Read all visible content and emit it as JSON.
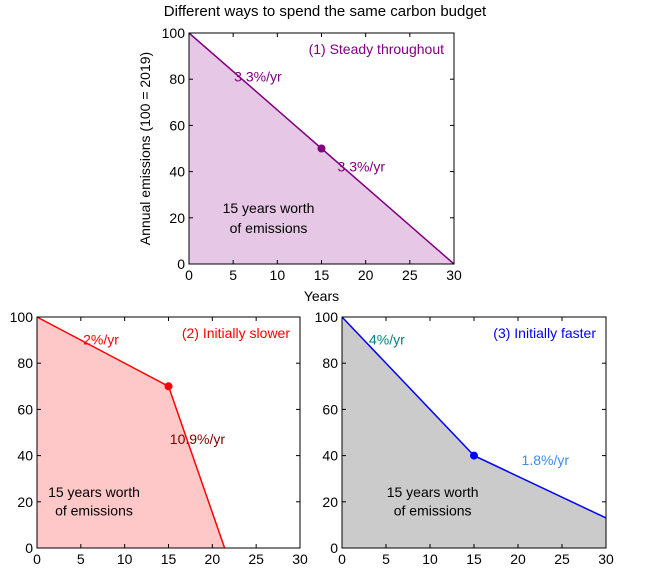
{
  "figure": {
    "title": "Different ways to spend the same carbon budget"
  },
  "chart_data": [
    {
      "type": "area",
      "title": "(1) Steady throughout",
      "title_color": "#800080",
      "xlabel": "Years",
      "ylabel": "Annual emissions (100 = 2019)",
      "xlim": [
        0,
        30
      ],
      "ylim": [
        0,
        100
      ],
      "xticks": [
        0,
        5,
        10,
        15,
        20,
        25,
        30
      ],
      "yticks": [
        0,
        20,
        40,
        60,
        80,
        100
      ],
      "grid": false,
      "line_color": "#800080",
      "fill_color": "#e6c8e6",
      "x": [
        0,
        15,
        30
      ],
      "y": [
        100,
        50,
        0
      ],
      "marker": {
        "x": 15,
        "y": 50
      },
      "annotations": [
        {
          "text": "3.3%/yr",
          "color": "#800080",
          "x": 7.8,
          "y": 79
        },
        {
          "text": "3.3%/yr",
          "color": "#800080",
          "x": 19.5,
          "y": 40
        },
        {
          "text": "15 years worth",
          "color": "#000000",
          "x": 9,
          "y": 22
        },
        {
          "text": "of emissions",
          "color": "#000000",
          "x": 9,
          "y": 13.5
        }
      ]
    },
    {
      "type": "area",
      "title": "(2) Initially slower",
      "title_color": "#ff0000",
      "xlabel": "",
      "ylabel": "",
      "xlim": [
        0,
        30
      ],
      "ylim": [
        0,
        100
      ],
      "xticks": [
        0,
        5,
        10,
        15,
        20,
        25,
        30
      ],
      "yticks": [
        0,
        20,
        40,
        60,
        80,
        100
      ],
      "grid": false,
      "line_color": "#ff0000",
      "fill_color": "#ffc8c8",
      "x": [
        0,
        15,
        21.4
      ],
      "y": [
        100,
        70,
        0
      ],
      "marker": {
        "x": 15,
        "y": 70
      },
      "annotations": [
        {
          "text": "2%/yr",
          "color": "#ff0000",
          "x": 7.3,
          "y": 88
        },
        {
          "text": "10.9%/yr",
          "color": "#800000",
          "x": 18.3,
          "y": 45
        },
        {
          "text": "15 years worth",
          "color": "#000000",
          "x": 6.5,
          "y": 22
        },
        {
          "text": "of emissions",
          "color": "#000000",
          "x": 6.5,
          "y": 14
        }
      ]
    },
    {
      "type": "area",
      "title": "(3) Initially faster",
      "title_color": "#0000ff",
      "xlabel": "",
      "ylabel": "",
      "xlim": [
        0,
        30
      ],
      "ylim": [
        0,
        100
      ],
      "xticks": [
        0,
        5,
        10,
        15,
        20,
        25,
        30
      ],
      "yticks": [
        0,
        20,
        40,
        60,
        80,
        100
      ],
      "grid": false,
      "line_color": "#0000ff",
      "fill_color": "#cbcbcb",
      "x": [
        0,
        15,
        30
      ],
      "y": [
        100,
        40,
        13
      ],
      "marker": {
        "x": 15,
        "y": 40
      },
      "annotations": [
        {
          "text": "4%/yr",
          "color": "#008080",
          "x": 5.1,
          "y": 88
        },
        {
          "text": "1.8%/yr",
          "color": "#3b8ded",
          "x": 23.1,
          "y": 36
        },
        {
          "text": "15 years worth",
          "color": "#000000",
          "x": 10.3,
          "y": 22
        },
        {
          "text": "of emissions",
          "color": "#000000",
          "x": 10.3,
          "y": 14
        }
      ]
    }
  ]
}
